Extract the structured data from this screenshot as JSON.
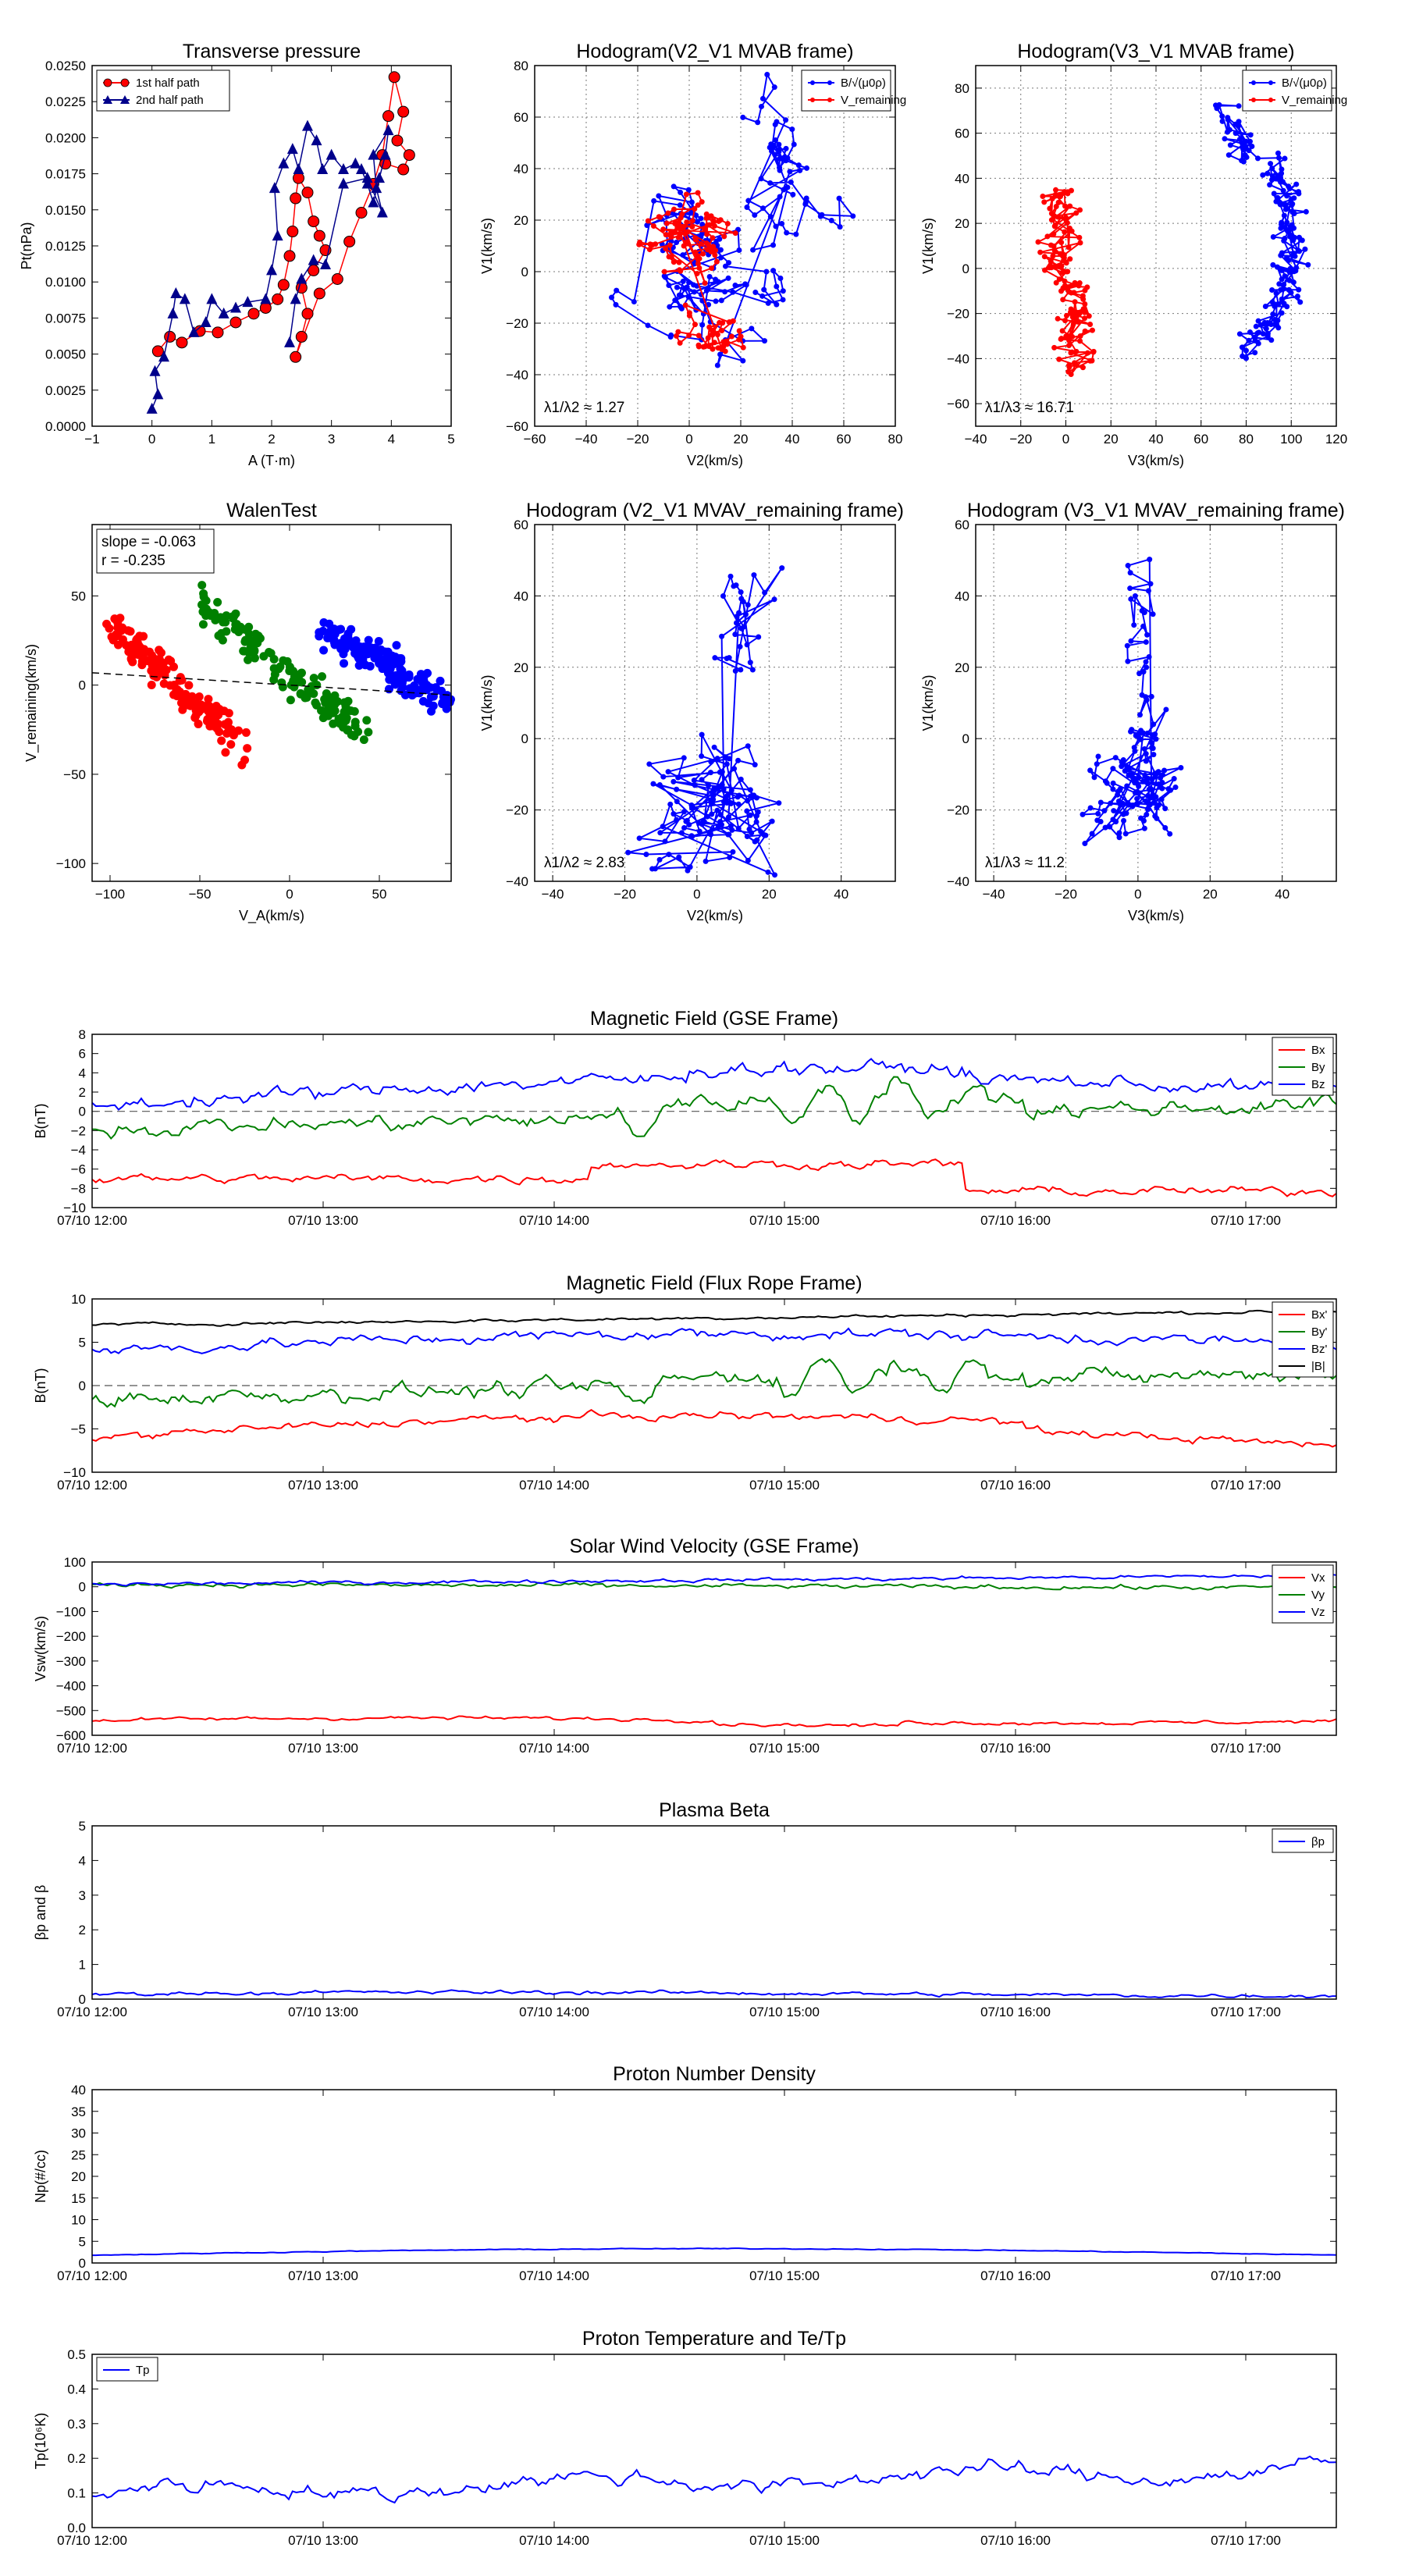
{
  "chart_data": [
    {
      "type": "scatter",
      "title": "Transverse pressure",
      "xlabel": "A (T·m)",
      "ylabel": "Pt(nPa)",
      "xlim": [
        -1,
        5
      ],
      "ylim": [
        0.0,
        0.025
      ],
      "xticks": [
        "−1",
        "0",
        "1",
        "2",
        "3",
        "4",
        "5"
      ],
      "yticks": [
        "0.0000",
        "0.0025",
        "0.0050",
        "0.0075",
        "0.0100",
        "0.0125",
        "0.0150",
        "0.0175",
        "0.0200",
        "0.0225",
        "0.0250"
      ],
      "legend": "top-left",
      "grid": false,
      "series": [
        {
          "name": "1st half path",
          "color": "#ff0000",
          "marker": "circle",
          "points": [
            [
              0.1,
              0.0052
            ],
            [
              0.3,
              0.0062
            ],
            [
              0.5,
              0.0058
            ],
            [
              0.8,
              0.0066
            ],
            [
              1.1,
              0.0065
            ],
            [
              1.4,
              0.0072
            ],
            [
              1.7,
              0.0078
            ],
            [
              1.9,
              0.0082
            ],
            [
              2.1,
              0.0088
            ],
            [
              2.2,
              0.0098
            ],
            [
              2.3,
              0.0118
            ],
            [
              2.35,
              0.0135
            ],
            [
              2.4,
              0.0158
            ],
            [
              2.45,
              0.0172
            ],
            [
              2.6,
              0.0162
            ],
            [
              2.7,
              0.0142
            ],
            [
              2.8,
              0.0132
            ],
            [
              2.9,
              0.0122
            ],
            [
              2.7,
              0.0108
            ],
            [
              2.5,
              0.0096
            ],
            [
              2.6,
              0.0078
            ],
            [
              2.5,
              0.0062
            ],
            [
              2.4,
              0.0048
            ],
            [
              2.8,
              0.0092
            ],
            [
              3.1,
              0.0102
            ],
            [
              3.3,
              0.0128
            ],
            [
              3.5,
              0.0148
            ],
            [
              3.7,
              0.0168
            ],
            [
              3.85,
              0.0188
            ],
            [
              3.95,
              0.0215
            ],
            [
              4.05,
              0.0242
            ],
            [
              4.2,
              0.0218
            ],
            [
              4.1,
              0.0198
            ],
            [
              4.3,
              0.0188
            ],
            [
              4.2,
              0.0178
            ],
            [
              3.9,
              0.0182
            ]
          ]
        },
        {
          "name": "2nd half path",
          "color": "#00008b",
          "marker": "triangle",
          "points": [
            [
              0.0,
              0.0012
            ],
            [
              0.1,
              0.0022
            ],
            [
              0.05,
              0.0038
            ],
            [
              0.2,
              0.0048
            ],
            [
              0.35,
              0.0078
            ],
            [
              0.4,
              0.0092
            ],
            [
              0.55,
              0.0088
            ],
            [
              0.7,
              0.0065
            ],
            [
              0.9,
              0.0072
            ],
            [
              1.0,
              0.0088
            ],
            [
              1.2,
              0.0078
            ],
            [
              1.4,
              0.0082
            ],
            [
              1.6,
              0.0086
            ],
            [
              1.9,
              0.0088
            ],
            [
              2.0,
              0.0108
            ],
            [
              2.1,
              0.0132
            ],
            [
              2.05,
              0.0165
            ],
            [
              2.2,
              0.0182
            ],
            [
              2.35,
              0.0192
            ],
            [
              2.45,
              0.0178
            ],
            [
              2.6,
              0.0208
            ],
            [
              2.75,
              0.0198
            ],
            [
              2.85,
              0.0178
            ],
            [
              3.0,
              0.0188
            ],
            [
              3.2,
              0.0178
            ],
            [
              3.4,
              0.0182
            ],
            [
              3.5,
              0.0178
            ],
            [
              3.6,
              0.0168
            ],
            [
              3.7,
              0.0155
            ],
            [
              3.8,
              0.0172
            ],
            [
              3.9,
              0.0188
            ],
            [
              3.95,
              0.0205
            ],
            [
              3.7,
              0.0188
            ],
            [
              3.75,
              0.0165
            ],
            [
              3.85,
              0.0148
            ],
            [
              3.6,
              0.0172
            ],
            [
              3.2,
              0.0168
            ],
            [
              2.9,
              0.0112
            ],
            [
              2.7,
              0.0115
            ],
            [
              2.5,
              0.0102
            ],
            [
              2.4,
              0.0088
            ],
            [
              2.3,
              0.0058
            ]
          ]
        }
      ]
    },
    {
      "type": "line",
      "title": "Hodogram(V2_V1 MVAB frame)",
      "xlabel": "V2(km/s)",
      "ylabel": "V1(km/s)",
      "xlim": [
        -60,
        80
      ],
      "ylim": [
        -60,
        80
      ],
      "xticks": [
        "−60",
        "−40",
        "−20",
        "0",
        "20",
        "40",
        "60",
        "80"
      ],
      "yticks": [
        "−60",
        "−40",
        "−20",
        "0",
        "20",
        "40",
        "60",
        "80"
      ],
      "grid": true,
      "legend": "top-right",
      "annotation": "λ1/λ2 ≈ 1.27",
      "series": [
        {
          "name": "B/√(μ0ρ)",
          "color": "#0000ff"
        },
        {
          "name": "V_remaining",
          "color": "#ff0000"
        }
      ]
    },
    {
      "type": "line",
      "title": "Hodogram(V3_V1 MVAB frame)",
      "xlabel": "V3(km/s)",
      "ylabel": "V1(km/s)",
      "xlim": [
        -40,
        120
      ],
      "ylim": [
        -70,
        90
      ],
      "xticks": [
        "−40",
        "−20",
        "0",
        "20",
        "40",
        "60",
        "80",
        "100",
        "120"
      ],
      "yticks": [
        "−60",
        "−40",
        "−20",
        "0",
        "20",
        "40",
        "60",
        "80"
      ],
      "grid": true,
      "legend": "top-right",
      "annotation": "λ1/λ3 ≈ 16.71",
      "series": [
        {
          "name": "B/√(μ0ρ)",
          "color": "#0000ff"
        },
        {
          "name": "V_remaining",
          "color": "#ff0000"
        }
      ]
    },
    {
      "type": "scatter",
      "title": "WalenTest",
      "xlabel": "V_A(km/s)",
      "ylabel": "V_remaining(km/s)",
      "xlim": [
        -110,
        90
      ],
      "ylim": [
        -110,
        90
      ],
      "xticks": [
        "−100",
        "−50",
        "0",
        "50"
      ],
      "yticks": [
        "−100",
        "−50",
        "0",
        "50"
      ],
      "annotation_lines": [
        "slope = -0.063",
        "r = -0.235"
      ],
      "fit_slope": -0.063,
      "colors": [
        "#ff0000",
        "#008000",
        "#0000ff"
      ]
    },
    {
      "type": "line",
      "title": "Hodogram (V2_V1 MVAV_remaining frame)",
      "xlabel": "V2(km/s)",
      "ylabel": "V1(km/s)",
      "xlim": [
        -45,
        55
      ],
      "ylim": [
        -40,
        60
      ],
      "xticks": [
        "−40",
        "−20",
        "0",
        "20",
        "40"
      ],
      "yticks": [
        "−40",
        "−20",
        "0",
        "20",
        "40",
        "60"
      ],
      "grid": true,
      "annotation": "λ1/λ2 ≈ 2.83",
      "series": [
        {
          "name": "",
          "color": "#0000ff"
        }
      ]
    },
    {
      "type": "line",
      "title": "Hodogram (V3_V1 MVAV_remaining frame)",
      "xlabel": "V3(km/s)",
      "ylabel": "V1(km/s)",
      "xlim": [
        -45,
        55
      ],
      "ylim": [
        -40,
        60
      ],
      "xticks": [
        "−40",
        "−20",
        "0",
        "20",
        "40"
      ],
      "yticks": [
        "−40",
        "−20",
        "0",
        "20",
        "40",
        "60"
      ],
      "grid": true,
      "annotation": "λ1/λ3 ≈ 11.2",
      "series": [
        {
          "name": "",
          "color": "#0000ff"
        }
      ]
    },
    {
      "type": "line",
      "title": "Magnetic Field (GSE Frame)",
      "ylabel": "B(nT)",
      "ylim": [
        -10,
        8
      ],
      "yticks": [
        "−10",
        "−8",
        "−6",
        "−4",
        "−2",
        "0",
        "2",
        "4",
        "6",
        "8"
      ],
      "xticks": [
        "07/10 12:00",
        "07/10 13:00",
        "07/10 14:00",
        "07/10 15:00",
        "07/10 16:00",
        "07/10 17:00"
      ],
      "zero_line": true,
      "legend": "top-right",
      "series": [
        {
          "name": "Bx",
          "color": "#ff0000"
        },
        {
          "name": "By",
          "color": "#008000"
        },
        {
          "name": "Bz",
          "color": "#0000ff"
        }
      ]
    },
    {
      "type": "line",
      "title": "Magnetic Field (Flux Rope Frame)",
      "ylabel": "B(nT)",
      "ylim": [
        -10,
        10
      ],
      "yticks": [
        "−10",
        "−5",
        "0",
        "5",
        "10"
      ],
      "xticks": [
        "07/10 12:00",
        "07/10 13:00",
        "07/10 14:00",
        "07/10 15:00",
        "07/10 16:00",
        "07/10 17:00"
      ],
      "zero_line": true,
      "legend": "top-right",
      "series": [
        {
          "name": "Bx'",
          "color": "#ff0000"
        },
        {
          "name": "By'",
          "color": "#008000"
        },
        {
          "name": "Bz'",
          "color": "#0000ff"
        },
        {
          "name": "|B|",
          "color": "#000000"
        }
      ]
    },
    {
      "type": "line",
      "title": "Solar Wind Velocity (GSE Frame)",
      "ylabel": "Vsw(km/s)",
      "ylim": [
        -600,
        100
      ],
      "yticks": [
        "−600",
        "−500",
        "−400",
        "−300",
        "−200",
        "−100",
        "0",
        "100"
      ],
      "xticks": [
        "07/10 12:00",
        "07/10 13:00",
        "07/10 14:00",
        "07/10 15:00",
        "07/10 16:00",
        "07/10 17:00"
      ],
      "legend": "top-right",
      "series": [
        {
          "name": "Vx",
          "color": "#ff0000"
        },
        {
          "name": "Vy",
          "color": "#008000"
        },
        {
          "name": "Vz",
          "color": "#0000ff"
        }
      ]
    },
    {
      "type": "line",
      "title": "Plasma Beta",
      "ylabel": "βp and β",
      "ylim": [
        0,
        5
      ],
      "yticks": [
        "0",
        "1",
        "2",
        "3",
        "4",
        "5"
      ],
      "xticks": [
        "07/10 12:00",
        "07/10 13:00",
        "07/10 14:00",
        "07/10 15:00",
        "07/10 16:00",
        "07/10 17:00"
      ],
      "legend": "top-right",
      "series": [
        {
          "name": "βp",
          "color": "#0000ff"
        }
      ]
    },
    {
      "type": "line",
      "title": "Proton Number Density",
      "ylabel": "Np(#/cc)",
      "ylim": [
        0,
        40
      ],
      "yticks": [
        "0",
        "5",
        "10",
        "15",
        "20",
        "25",
        "30",
        "35",
        "40"
      ],
      "xticks": [
        "07/10 12:00",
        "07/10 13:00",
        "07/10 14:00",
        "07/10 15:00",
        "07/10 16:00",
        "07/10 17:00"
      ],
      "series": [
        {
          "name": "",
          "color": "#0000ff"
        }
      ]
    },
    {
      "type": "line",
      "title": "Proton Temperature and Te/Tp",
      "ylabel": "Tp(10⁶K)",
      "ylim": [
        0,
        0.5
      ],
      "yticks": [
        "0.0",
        "0.1",
        "0.2",
        "0.3",
        "0.4",
        "0.5"
      ],
      "xticks": [
        "07/10 12:00",
        "07/10 13:00",
        "07/10 14:00",
        "07/10 15:00",
        "07/10 16:00",
        "07/10 17:00"
      ],
      "legend": "top-left",
      "series": [
        {
          "name": "Tp",
          "color": "#0000ff"
        }
      ]
    }
  ]
}
